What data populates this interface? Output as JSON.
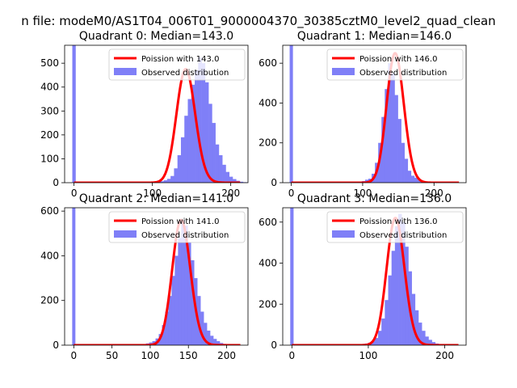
{
  "figure_title": "n file: modeM0/AS1T04_006T01_9000004370_30385cztM0_level2_quad_clean",
  "colors": {
    "hist": "#7f7ff7",
    "poisson": "#ff0000",
    "axis": "#000000",
    "legend_border": "#cccccc"
  },
  "chart_data": [
    {
      "type": "bar",
      "title": "Quadrant 0: Median=143.0",
      "legend": [
        "Poission with 143.0",
        "Observed distribution"
      ],
      "xlim": [
        -12,
        222
      ],
      "ylim": [
        0,
        575
      ],
      "xticks": [
        0,
        100,
        200
      ],
      "yticks": [
        0,
        100,
        200,
        300,
        400,
        500
      ],
      "median": 143.0,
      "poisson_peak": 475,
      "spike": {
        "x": 0,
        "width": 4.4,
        "value": 575
      },
      "hist": {
        "start": 88,
        "bin_width": 4.4,
        "values": [
          1,
          1,
          2,
          3,
          4,
          6,
          10,
          16,
          28,
          60,
          115,
          190,
          280,
          350,
          410,
          470,
          525,
          500,
          420,
          330,
          250,
          160,
          115,
          75,
          45,
          25,
          15,
          8,
          4,
          2,
          1
        ]
      }
    },
    {
      "type": "bar",
      "title": "Quadrant 1: Median=146.0",
      "legend": [
        "Poission with 146.0",
        "Observed distribution"
      ],
      "xlim": [
        -12,
        245
      ],
      "ylim": [
        0,
        690
      ],
      "xticks": [
        0,
        100,
        200
      ],
      "yticks": [
        0,
        200,
        400,
        600
      ],
      "median": 146.0,
      "poisson_peak": 650,
      "spike": {
        "x": 0,
        "width": 4.6,
        "value": 690
      },
      "hist": {
        "start": 85,
        "bin_width": 4.6,
        "values": [
          2,
          3,
          5,
          8,
          15,
          20,
          45,
          100,
          200,
          330,
          470,
          600,
          550,
          440,
          320,
          200,
          120,
          60,
          35,
          25,
          15,
          10,
          6,
          4,
          2,
          1
        ]
      }
    },
    {
      "type": "bar",
      "title": "Quadrant 2: Median=141.0",
      "legend": [
        "Poission with 141.0",
        "Observed distribution"
      ],
      "xlim": [
        -12,
        228
      ],
      "ylim": [
        0,
        615
      ],
      "xticks": [
        0,
        50,
        100,
        150,
        200
      ],
      "yticks": [
        0,
        200,
        400,
        600
      ],
      "median": 141.0,
      "poisson_peak": 560,
      "spike": {
        "x": 0,
        "width": 4.2,
        "value": 615
      },
      "hist": {
        "start": 86,
        "bin_width": 4.2,
        "values": [
          3,
          5,
          8,
          12,
          18,
          30,
          50,
          90,
          150,
          220,
          310,
          400,
          480,
          560,
          535,
          460,
          380,
          300,
          220,
          150,
          100,
          65,
          42,
          28,
          18,
          10,
          6,
          3,
          2,
          1
        ]
      }
    },
    {
      "type": "bar",
      "title": "Quadrant 3: Median=136.0",
      "legend": [
        "Poission with 136.0",
        "Observed distribution"
      ],
      "xlim": [
        -12,
        228
      ],
      "ylim": [
        0,
        670
      ],
      "xticks": [
        0,
        100,
        200
      ],
      "yticks": [
        0,
        200,
        400,
        600
      ],
      "median": 136.0,
      "poisson_peak": 620,
      "spike": {
        "x": 0,
        "width": 4.4,
        "value": 670
      },
      "hist": {
        "start": 82,
        "bin_width": 4.4,
        "values": [
          2,
          3,
          5,
          8,
          12,
          20,
          35,
          70,
          130,
          220,
          340,
          460,
          580,
          640,
          600,
          480,
          360,
          250,
          170,
          110,
          70,
          42,
          26,
          15,
          8,
          4,
          2,
          1
        ]
      }
    }
  ]
}
